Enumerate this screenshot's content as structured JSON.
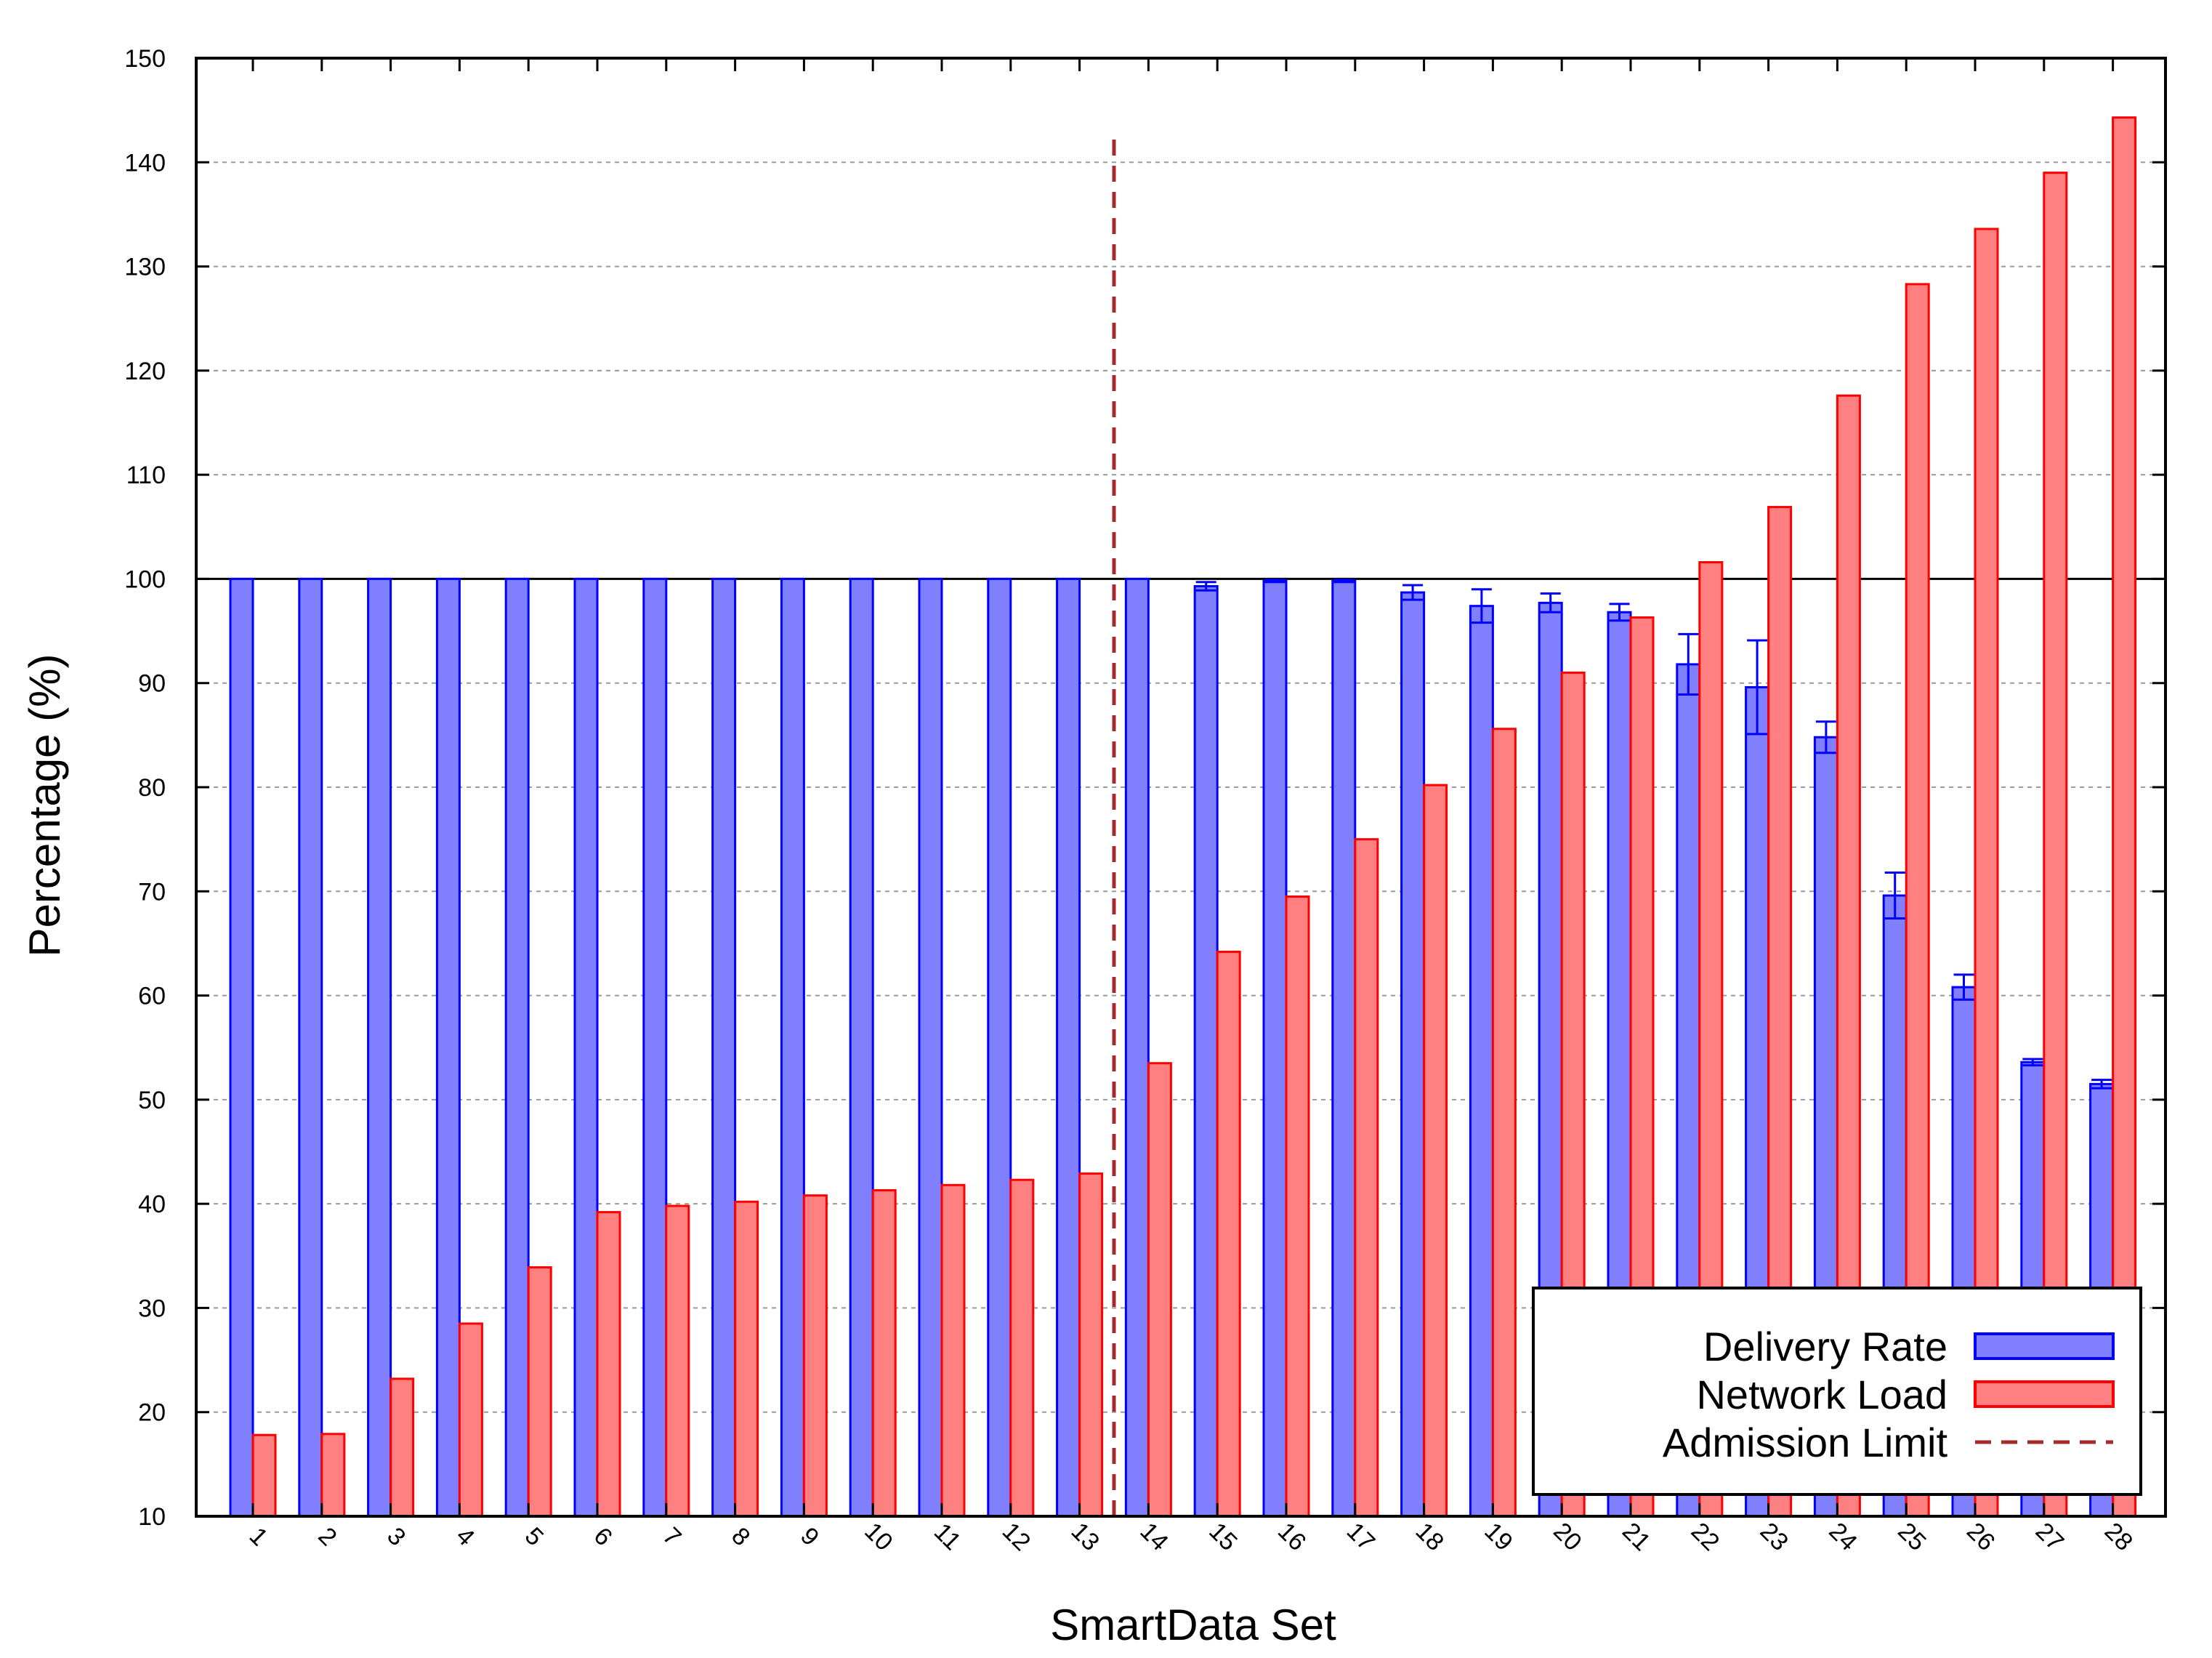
{
  "chart_data": {
    "type": "bar",
    "title": "",
    "xlabel": "SmartData Set",
    "ylabel": "Percentage (%)",
    "ylim": [
      10,
      150
    ],
    "yticks": [
      "10",
      "20",
      "30",
      "40",
      "50",
      "60",
      "70",
      "80",
      "90",
      "100",
      "110",
      "120",
      "130",
      "140",
      "150"
    ],
    "grid": true,
    "categories": [
      "1",
      "2",
      "3",
      "4",
      "5",
      "6",
      "7",
      "8",
      "9",
      "10",
      "11",
      "12",
      "13",
      "14",
      "15",
      "16",
      "17",
      "18",
      "19",
      "20",
      "21",
      "22",
      "23",
      "24",
      "25",
      "26",
      "27",
      "28"
    ],
    "series": [
      {
        "name": "Delivery Rate",
        "color": "#8080ff",
        "edge_color": "#0000ff",
        "values": [
          100,
          100,
          100,
          100,
          100,
          100,
          100,
          100,
          100,
          100,
          100,
          100,
          100,
          100,
          99.3,
          99.8,
          99.8,
          98.7,
          97.4,
          97.7,
          96.8,
          91.8,
          89.6,
          84.8,
          69.6,
          60.8,
          53.6,
          51.5
        ],
        "errors": [
          0,
          0,
          0,
          0,
          0,
          0,
          0,
          0,
          0,
          0,
          0,
          0,
          0,
          0,
          0.4,
          0.1,
          0.1,
          0.7,
          1.6,
          0.9,
          0.8,
          2.9,
          4.5,
          1.5,
          2.2,
          1.2,
          0.3,
          0.4
        ]
      },
      {
        "name": "Network Load",
        "color": "#ff8080",
        "edge_color": "#ff0000",
        "values": [
          17.8,
          17.9,
          23.2,
          28.5,
          33.9,
          39.2,
          39.8,
          40.2,
          40.8,
          41.3,
          41.8,
          42.3,
          42.9,
          53.5,
          64.2,
          69.5,
          75.0,
          80.2,
          85.6,
          91.0,
          96.3,
          101.6,
          106.9,
          117.6,
          128.3,
          133.6,
          139.0,
          144.3
        ]
      }
    ],
    "reference_lines": [
      {
        "name": "Admission Limit",
        "orientation": "vertical",
        "between_categories": [
          "13",
          "14"
        ],
        "color": "#a52a2a",
        "style": "dashed",
        "y_extent": [
          10,
          143
        ]
      },
      {
        "name": "",
        "orientation": "horizontal",
        "y": 100,
        "color": "#000000",
        "style": "solid"
      }
    ],
    "legend": {
      "position": "bottom-right",
      "entries": [
        "Delivery Rate",
        "Network Load",
        "Admission Limit"
      ]
    }
  }
}
